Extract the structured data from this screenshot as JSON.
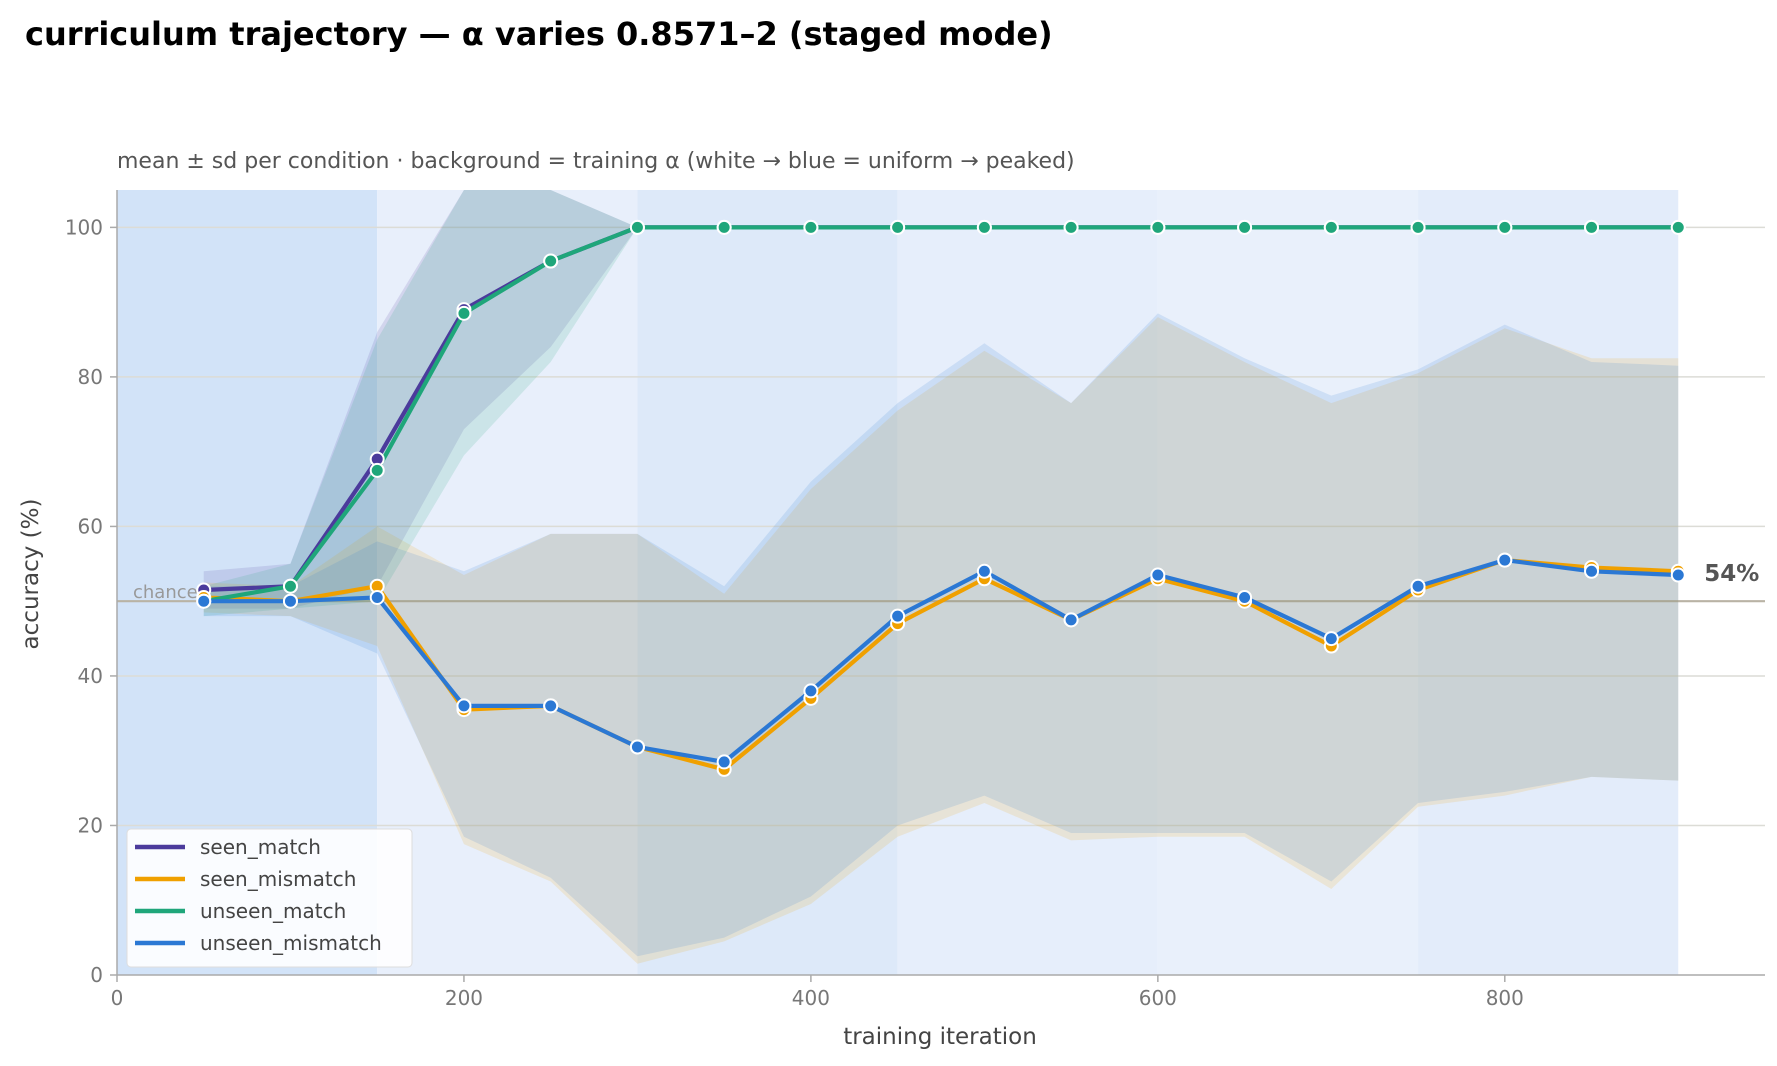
{
  "chart_data": {
    "type": "line",
    "title": "curriculum trajectory — α varies 0.8571–2 (staged mode)",
    "subtitle": "mean ± sd per condition · background = training α (white → blue = uniform → peaked)",
    "xlabel": "training iteration",
    "ylabel": "accuracy (%)",
    "xlim": [
      0,
      950
    ],
    "ylim": [
      0,
      105
    ],
    "xticks": [
      0,
      200,
      400,
      600,
      800
    ],
    "yticks": [
      0,
      20,
      40,
      60,
      80,
      100
    ],
    "grid": "horizontal",
    "legend_position": "bottom-left",
    "chance_level": 50,
    "chance_label": "chance",
    "end_annotation": "54%",
    "background_bands": [
      {
        "x0": 0,
        "x1": 150,
        "color": "#d2e3f8"
      },
      {
        "x0": 150,
        "x1": 300,
        "color": "#e8effb"
      },
      {
        "x0": 300,
        "x1": 450,
        "color": "#dde9f9"
      },
      {
        "x0": 450,
        "x1": 600,
        "color": "#e6eefb"
      },
      {
        "x0": 600,
        "x1": 750,
        "color": "#e9f0fb"
      },
      {
        "x0": 750,
        "x1": 900,
        "color": "#e3ecfa"
      }
    ],
    "x": [
      50,
      100,
      150,
      200,
      250,
      300,
      350,
      400,
      450,
      500,
      550,
      600,
      650,
      700,
      750,
      800,
      850,
      900
    ],
    "series": [
      {
        "name": "seen_match",
        "color": "#4b3b9c",
        "values": [
          51.5,
          52,
          69,
          89,
          95.5,
          100,
          100,
          100,
          100,
          100,
          100,
          100,
          100,
          100,
          100,
          100,
          100,
          100
        ],
        "lower": [
          49,
          49,
          52,
          73,
          84,
          100,
          100,
          100,
          100,
          100,
          100,
          100,
          100,
          100,
          100,
          100,
          100,
          100
        ],
        "upper": [
          54,
          55,
          86,
          105,
          105,
          100,
          100,
          100,
          100,
          100,
          100,
          100,
          100,
          100,
          100,
          100,
          100,
          100
        ]
      },
      {
        "name": "seen_mismatch",
        "color": "#f0a000",
        "values": [
          50.5,
          50,
          52,
          35.5,
          36,
          30.5,
          27.5,
          37,
          47,
          53,
          47.5,
          53,
          50,
          44,
          51.5,
          55.5,
          54.5,
          54
        ],
        "lower": [
          48.5,
          48,
          44,
          17.5,
          12.5,
          1.5,
          4.5,
          9.5,
          18.5,
          23,
          18,
          18.5,
          18.5,
          11.5,
          22.5,
          24,
          26.5,
          26
        ],
        "upper": [
          52.5,
          52,
          60,
          53.5,
          59,
          59,
          51,
          65,
          75.5,
          83.5,
          76.5,
          88,
          82,
          76.5,
          80.5,
          86.5,
          82.5,
          82.5
        ]
      },
      {
        "name": "unseen_match",
        "color": "#1fa67a",
        "values": [
          50,
          52,
          67.5,
          88.5,
          95.5,
          100,
          100,
          100,
          100,
          100,
          100,
          100,
          100,
          100,
          100,
          100,
          100,
          100
        ],
        "lower": [
          48,
          49,
          50,
          69.5,
          82,
          100,
          100,
          100,
          100,
          100,
          100,
          100,
          100,
          100,
          100,
          100,
          100,
          100
        ],
        "upper": [
          52,
          55,
          85,
          105,
          105,
          100,
          100,
          100,
          100,
          100,
          100,
          100,
          100,
          100,
          100,
          100,
          100,
          100
        ]
      },
      {
        "name": "unseen_mismatch",
        "color": "#2b78d4",
        "values": [
          50,
          50,
          50.5,
          36,
          36,
          30.5,
          28.5,
          38,
          48,
          54,
          47.5,
          53.5,
          50.5,
          45,
          52,
          55.5,
          54,
          53.5
        ],
        "lower": [
          48,
          48,
          43,
          18.5,
          13,
          2.5,
          5,
          10.5,
          20,
          24,
          19,
          19,
          19,
          12.5,
          23,
          24.5,
          26.5,
          26
        ],
        "upper": [
          52,
          52,
          58,
          54,
          59,
          59,
          52,
          66,
          76.5,
          84.5,
          76.5,
          88.5,
          82.5,
          77.5,
          81,
          87,
          82,
          81.5
        ]
      }
    ]
  }
}
